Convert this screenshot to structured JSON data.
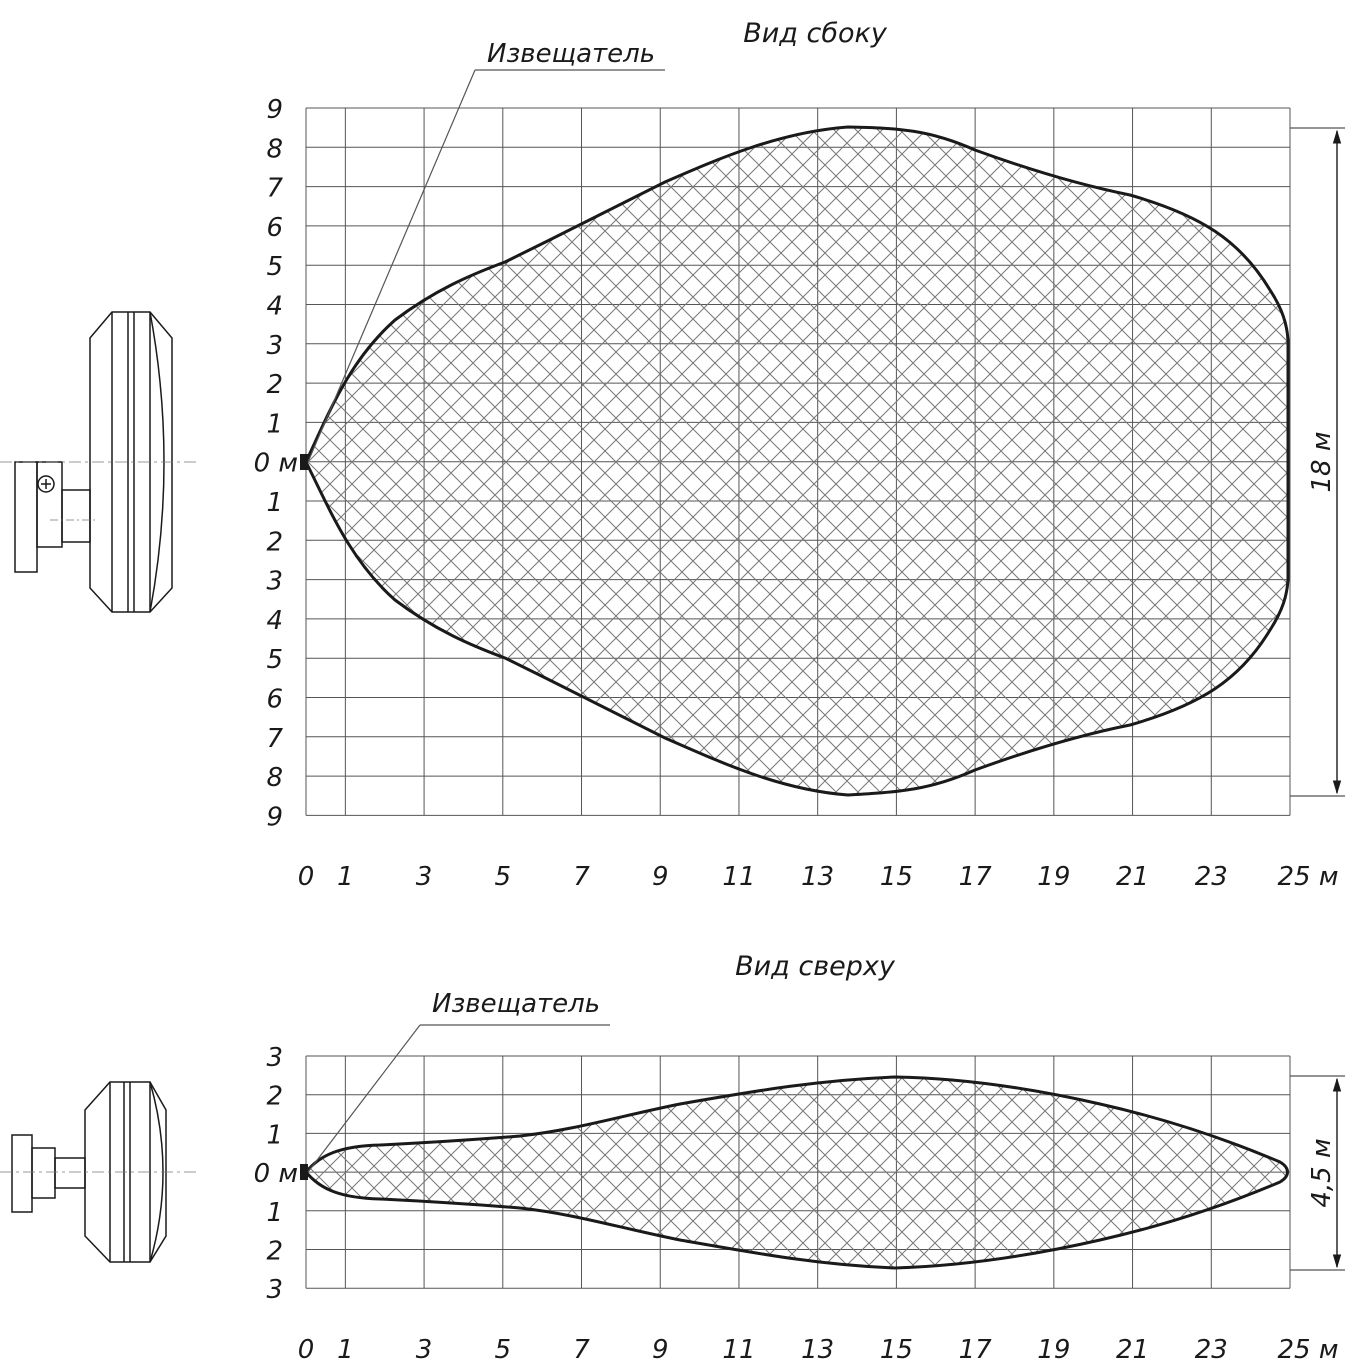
{
  "side_view": {
    "title": "Вид сбоку",
    "callout": "Извещатель",
    "x_ticks": [
      "0",
      "1",
      "3",
      "5",
      "7",
      "9",
      "11",
      "13",
      "15",
      "17",
      "19",
      "21",
      "23",
      "25 м"
    ],
    "y_ticks": [
      "9",
      "8",
      "7",
      "6",
      "5",
      "4",
      "3",
      "2",
      "1",
      "0 м",
      "1",
      "2",
      "3",
      "4",
      "5",
      "6",
      "7",
      "8",
      "9"
    ],
    "dimension": "18 м"
  },
  "top_view": {
    "title": "Вид сверху",
    "callout": "Извещатель",
    "x_ticks": [
      "0",
      "1",
      "3",
      "5",
      "7",
      "9",
      "11",
      "13",
      "15",
      "17",
      "19",
      "21",
      "23",
      "25 м"
    ],
    "y_ticks": [
      "3",
      "2",
      "1",
      "0 м",
      "1",
      "2",
      "3"
    ],
    "dimension": "4,5 м"
  },
  "colors": {
    "ink": "#1a1a1a",
    "grid": "#555555",
    "hatch": "#777777",
    "background": "#ffffff"
  }
}
